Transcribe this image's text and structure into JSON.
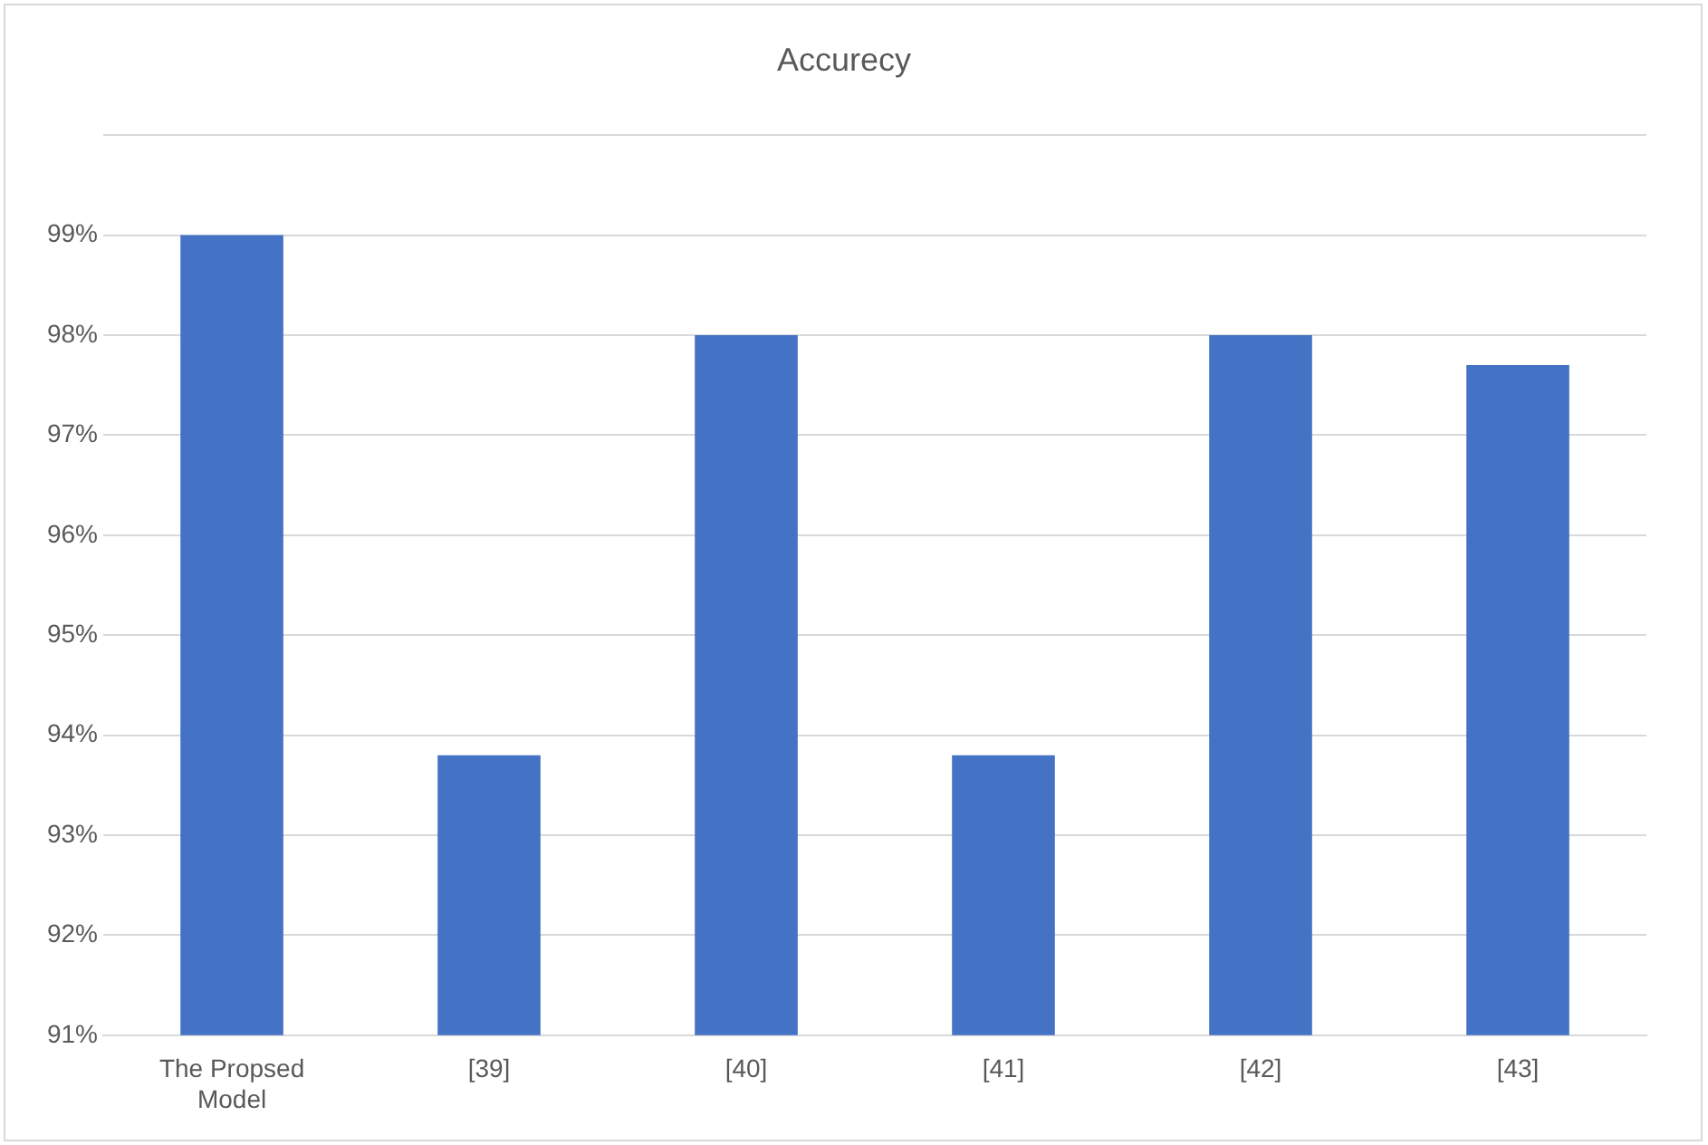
{
  "chart_data": {
    "type": "bar",
    "title": "Accurecy",
    "categories": [
      "The Propsed Model",
      "[39]",
      "[40]",
      "[41]",
      "[42]",
      "[43]"
    ],
    "values": [
      99,
      93.8,
      98,
      93.8,
      98,
      97.7
    ],
    "color": "#4472c4",
    "ylim": [
      91,
      100
    ],
    "yticks": [
      {
        "value": 91,
        "label": "91%"
      },
      {
        "value": 92,
        "label": "92%"
      },
      {
        "value": 93,
        "label": "93%"
      },
      {
        "value": 94,
        "label": "94%"
      },
      {
        "value": 95,
        "label": "95%"
      },
      {
        "value": 96,
        "label": "96%"
      },
      {
        "value": 97,
        "label": "97%"
      },
      {
        "value": 98,
        "label": "98%"
      },
      {
        "value": 99,
        "label": "99%"
      },
      {
        "value": 100,
        "label": null
      }
    ],
    "grid": "y",
    "legend": false
  }
}
